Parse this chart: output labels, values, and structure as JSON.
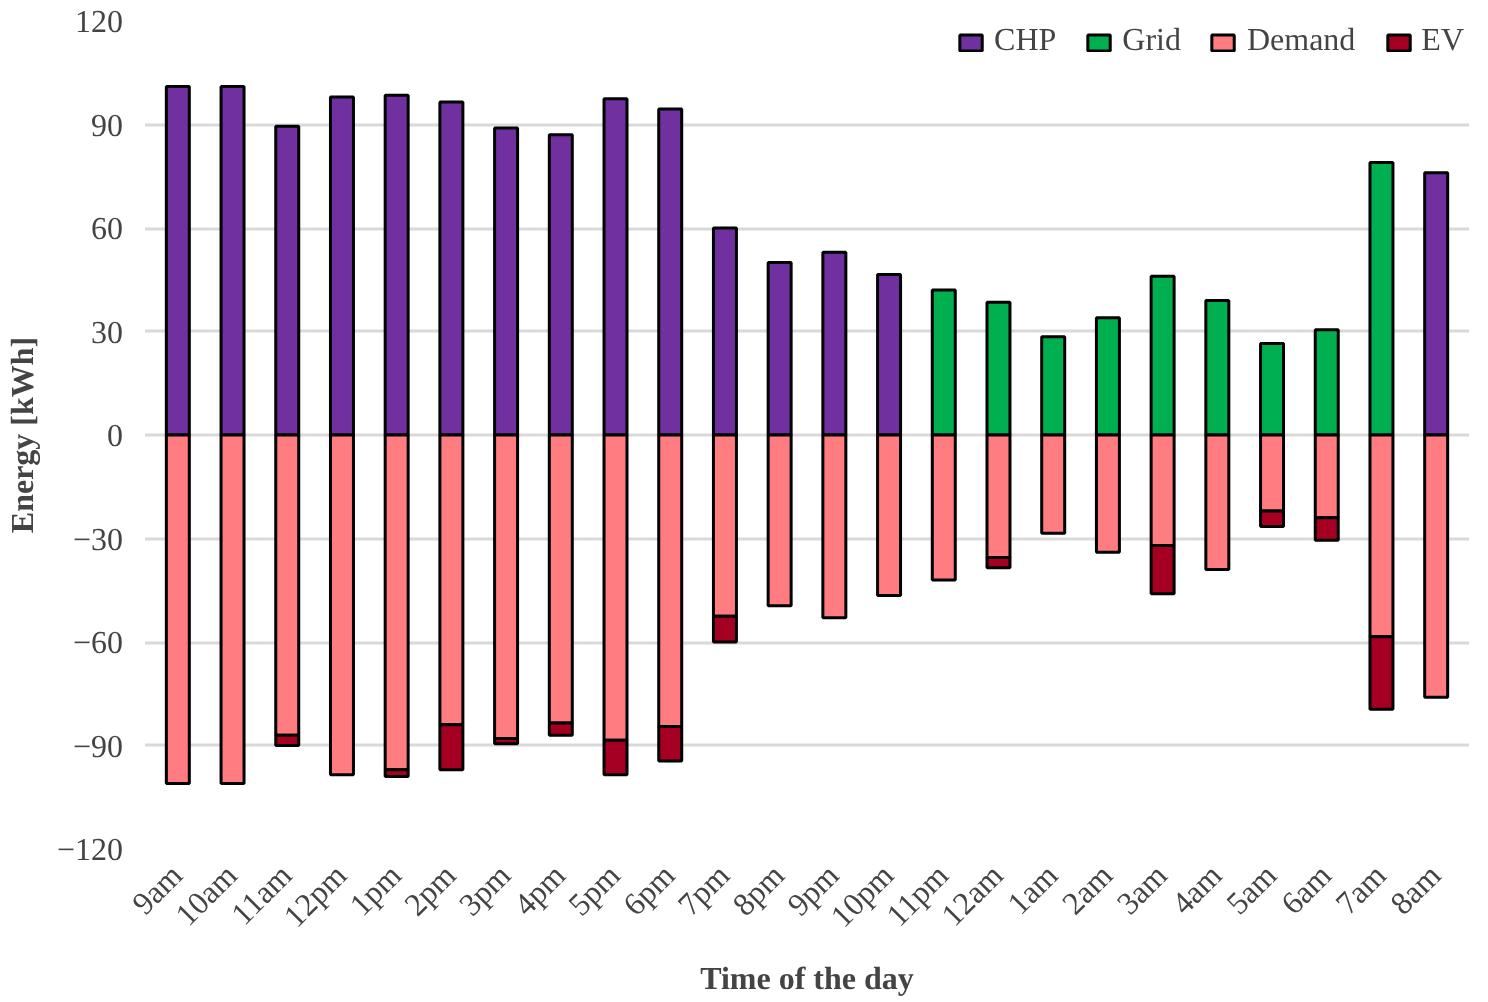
{
  "chart_data": {
    "type": "bar",
    "stacked": true,
    "xlabel": "Time of the day",
    "ylabel": "Energy [kWh]",
    "categories": [
      "9am",
      "10am",
      "11am",
      "12pm",
      "1pm",
      "2pm",
      "3pm",
      "4pm",
      "5pm",
      "6pm",
      "7pm",
      "8pm",
      "9pm",
      "10pm",
      "11pm",
      "12am",
      "1am",
      "2am",
      "3am",
      "4am",
      "5am",
      "6am",
      "7am",
      "8am"
    ],
    "series": [
      {
        "name": "CHP",
        "color": "#7030a0",
        "values": [
          101,
          101,
          89.5,
          98,
          98.5,
          96.5,
          89,
          87,
          97.5,
          94.5,
          60,
          50,
          53,
          46.5,
          null,
          null,
          null,
          null,
          null,
          null,
          null,
          null,
          null,
          76
        ]
      },
      {
        "name": "Grid",
        "color": "#00b050",
        "values": [
          null,
          null,
          null,
          null,
          null,
          null,
          null,
          null,
          null,
          null,
          null,
          null,
          null,
          null,
          42,
          38.5,
          28.5,
          34,
          46,
          39,
          26.5,
          30.5,
          79,
          null
        ]
      },
      {
        "name": "Demand",
        "color": "#ff7c80",
        "values": [
          -101,
          -101,
          -87,
          -98.5,
          -97,
          -84,
          -88,
          -83.5,
          -88.5,
          -84.5,
          -52.5,
          -49.5,
          -53,
          -46.5,
          -42,
          -35.5,
          -28.5,
          -34,
          -32,
          -39,
          -22,
          -24,
          -58.5,
          -76
        ]
      },
      {
        "name": "EV",
        "color": "#a50021",
        "values": [
          null,
          null,
          -3,
          null,
          -2,
          -13,
          -1.5,
          -3.5,
          -10,
          -10,
          -7.5,
          null,
          null,
          null,
          null,
          -3,
          null,
          null,
          -14,
          null,
          -4.5,
          -6.5,
          -21,
          null
        ]
      }
    ],
    "ylim": [
      -120,
      120
    ],
    "yticks": [
      -120,
      -90,
      -60,
      -30,
      0,
      30,
      60,
      90,
      120
    ],
    "grid": "y",
    "legend": "top right"
  }
}
